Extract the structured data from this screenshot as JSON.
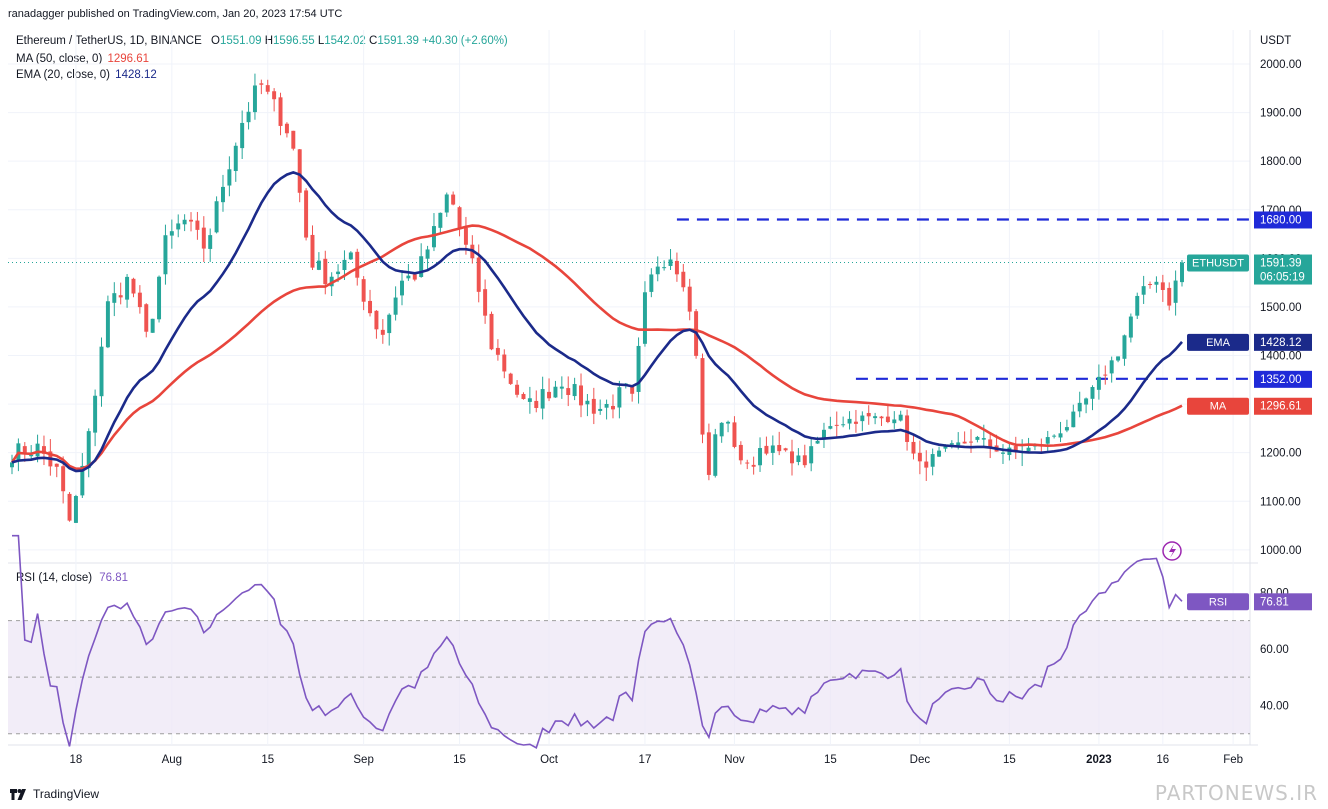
{
  "header": {
    "published": "ranadagger published on TradingView.com, Jan 20, 2023 17:54 UTC",
    "symbol": "Ethereum / TetherUS, 1D, BINANCE",
    "ohlc": {
      "o_label": "O",
      "o": "1551.09",
      "h_label": "H",
      "h": "1596.55",
      "l_label": "L",
      "l": "1542.02",
      "c_label": "C",
      "c": "1591.39",
      "chg": "+40.30 (+2.60%)"
    },
    "ma_label": "MA (50, close, 0)",
    "ma_value": "1296.61",
    "ema_label": "EMA (20, close, 0)",
    "ema_value": "1428.12",
    "rsi_label": "RSI (14, close)",
    "rsi_value": "76.81"
  },
  "footer": {
    "brand": "TradingView",
    "watermark": "PARTONEWS.IR"
  },
  "colors": {
    "up": "#26a69a",
    "down": "#ef5350",
    "ema": "#1b2a8a",
    "ma": "#e8453c",
    "rsi": "#7e57c2",
    "level": "#1f2ad8",
    "rsi_band": "#ede7f6"
  },
  "chart_data": [
    {
      "type": "candlestick",
      "currency_label": "USDT",
      "y_ticks": [
        "2000.00",
        "1900.00",
        "1800.00",
        "1700.00",
        "1600.00",
        "1500.00",
        "1400.00",
        "1300.00",
        "1200.00",
        "1100.00",
        "1000.00"
      ],
      "ylim": [
        975,
        2070
      ],
      "x_ticks": [
        "18",
        "Aug",
        "15",
        "Sep",
        "15",
        "Oct",
        "17",
        "Nov",
        "15",
        "Dec",
        "15",
        "2023",
        "16",
        "Feb"
      ],
      "levels": [
        {
          "value": 1680,
          "label": "1680.00"
        },
        {
          "value": 1352,
          "label": "1352.00"
        }
      ],
      "last_price": {
        "label": "ETHUSDT",
        "value": "1591.39",
        "countdown": "06:05:19"
      },
      "ema_badge": {
        "label": "EMA",
        "value": "1428.12"
      },
      "ma_badge": {
        "label": "MA",
        "value": "1296.61"
      },
      "series_ohlc": [],
      "ema20": [],
      "ma50": []
    },
    {
      "type": "line",
      "name": "RSI",
      "y_ticks": [
        "80.00",
        "60.00",
        "40.00"
      ],
      "ylim": [
        26,
        90
      ],
      "band": [
        30,
        70
      ],
      "badge": {
        "label": "RSI",
        "value": "76.81"
      },
      "values": []
    }
  ]
}
